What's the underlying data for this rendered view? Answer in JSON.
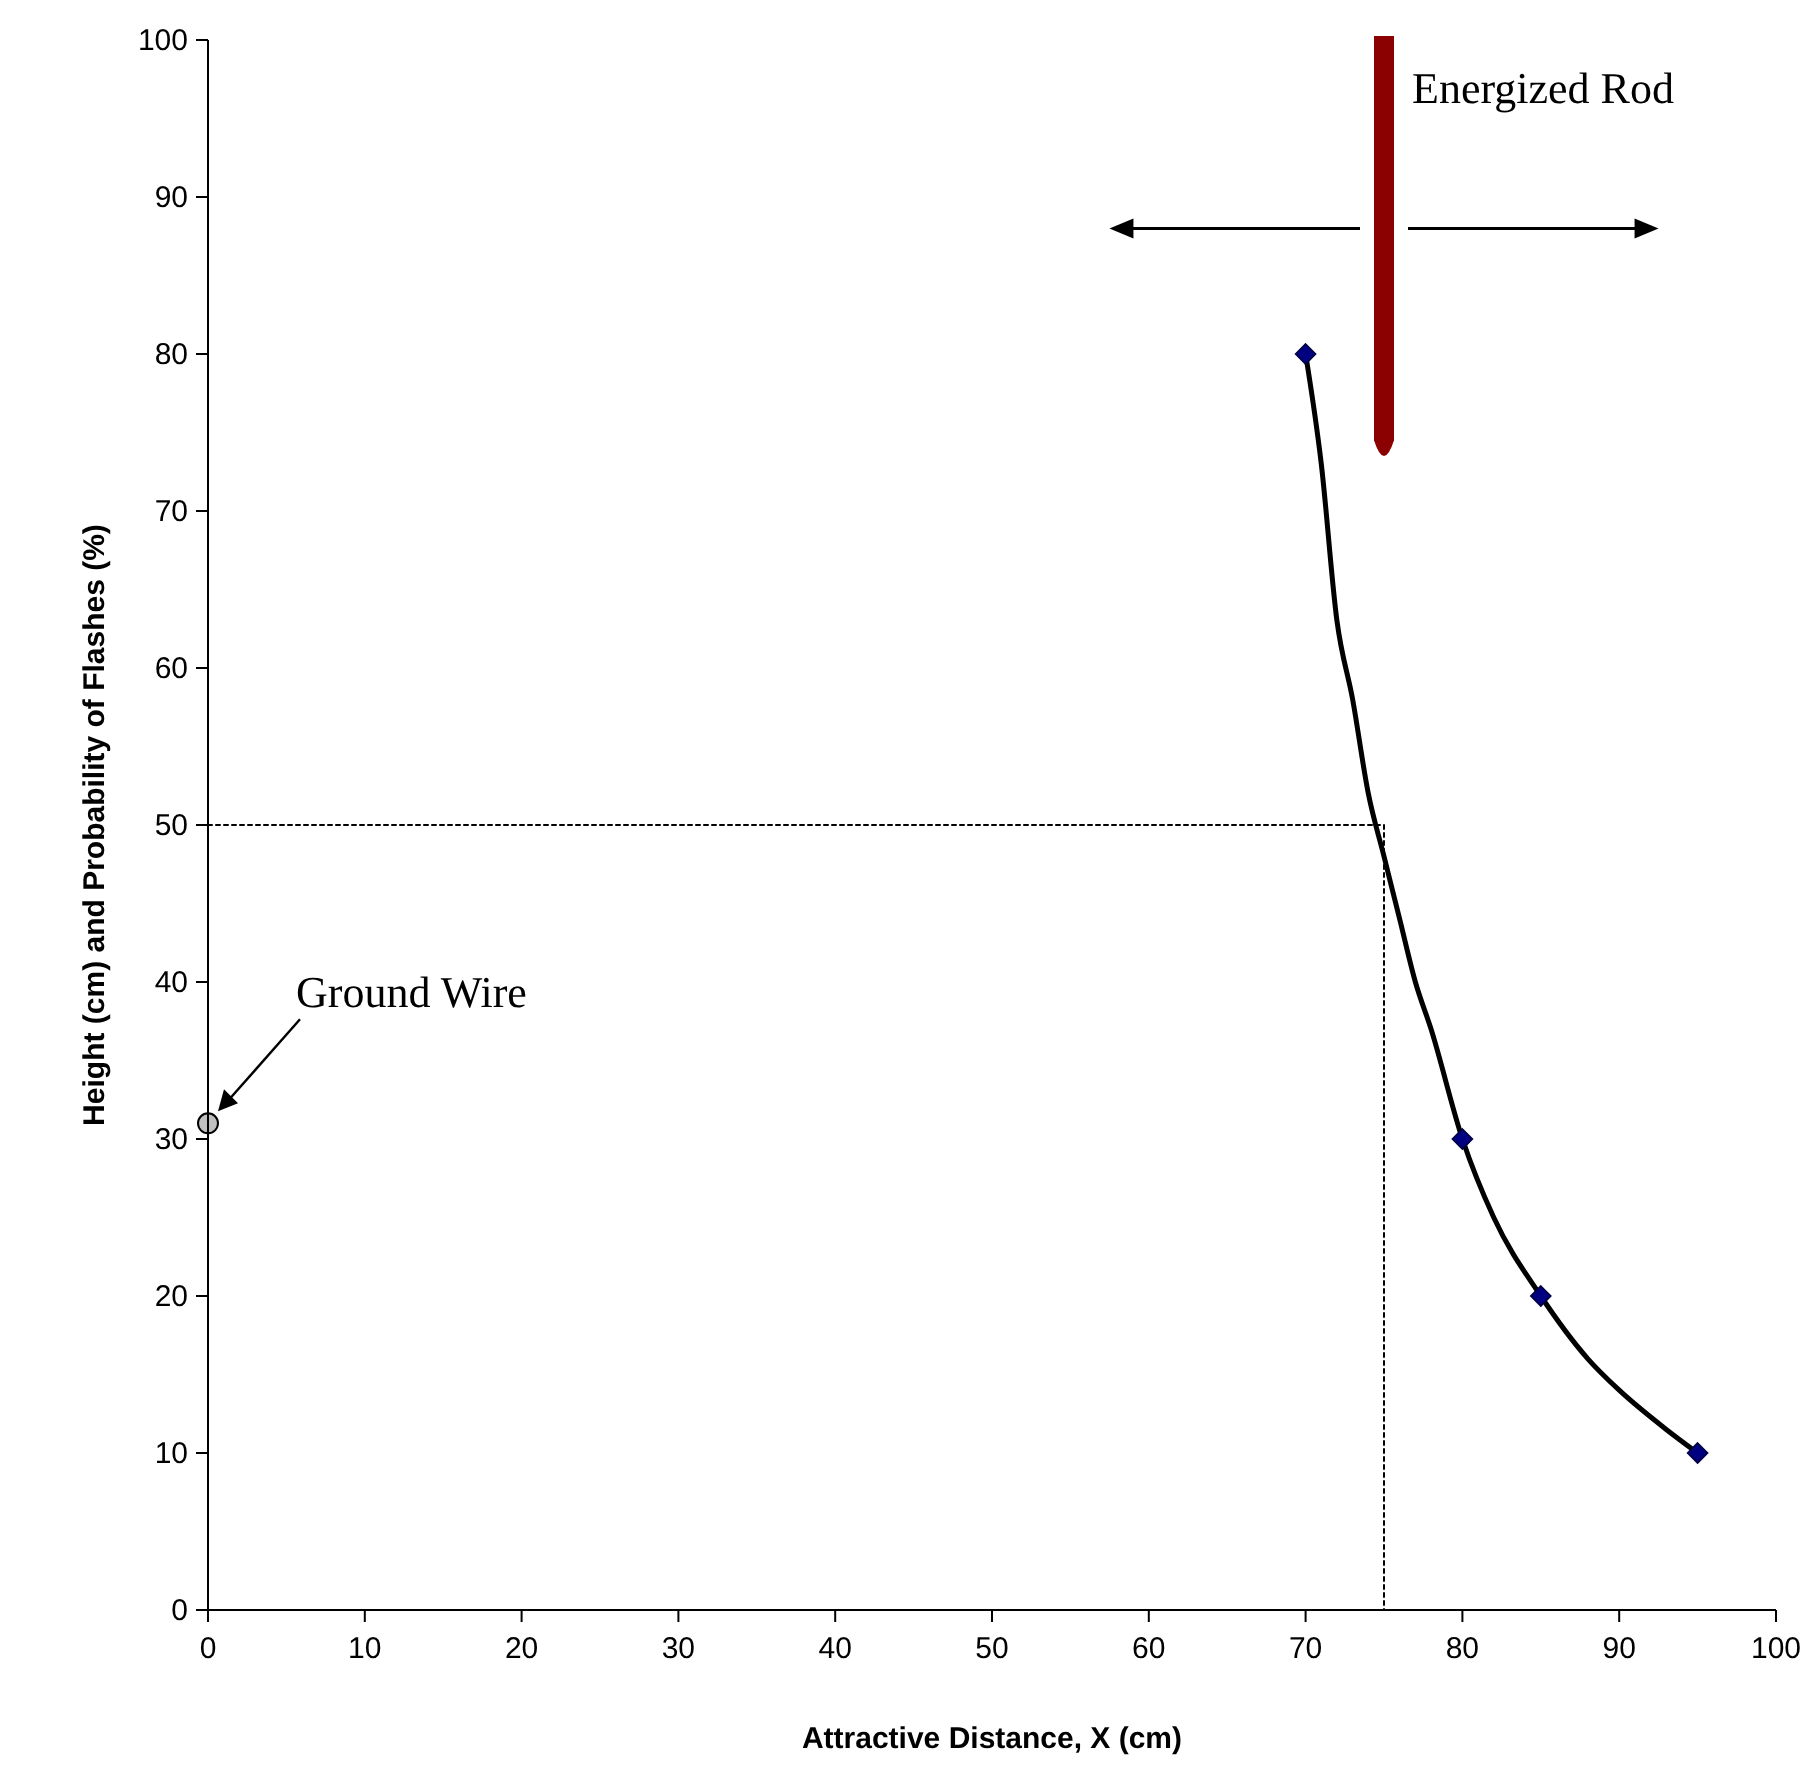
{
  "chart_data": {
    "type": "line",
    "xlabel": "Attractive Distance, X (cm)",
    "ylabel": "Height (cm) and Probability of Flashes (%)",
    "xlim": [
      0,
      100
    ],
    "ylim": [
      0,
      100
    ],
    "xticks": [
      0,
      10,
      20,
      30,
      40,
      50,
      60,
      70,
      80,
      90,
      100
    ],
    "yticks": [
      0,
      10,
      20,
      30,
      40,
      50,
      60,
      70,
      80,
      90,
      100
    ],
    "grid": false,
    "series": [
      {
        "color": "#000000",
        "marker": "none",
        "line_style": "solid",
        "x": [
          70,
          71,
          72,
          73,
          74,
          75,
          76,
          77,
          78,
          80,
          82,
          85,
          88,
          90,
          93,
          95
        ],
        "values": [
          80,
          73,
          63,
          58,
          52,
          48,
          44,
          40,
          37,
          30,
          25,
          20,
          16,
          14,
          11.5,
          10
        ]
      },
      {
        "type": "scatter",
        "color": "#000080",
        "marker": "diamond",
        "x": [
          70,
          80,
          85,
          95
        ],
        "values": [
          80,
          30,
          20,
          10
        ]
      },
      {
        "type": "scatter",
        "color": "#c0c0c0",
        "marker": "circle",
        "x": [
          0
        ],
        "values": [
          31
        ]
      },
      {
        "type": "line",
        "color": "#000000",
        "marker": "none",
        "line_style": "dotted",
        "x": [
          0,
          75,
          75
        ],
        "values": [
          50,
          50,
          0
        ]
      }
    ],
    "annotations": [
      "Ground Wire",
      "Energized Rod"
    ]
  }
}
